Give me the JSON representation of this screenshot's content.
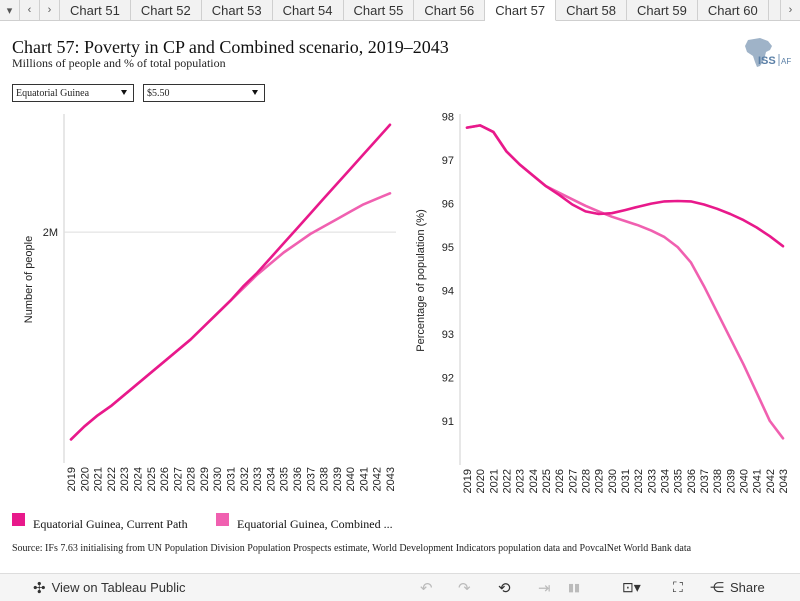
{
  "tabbar": {
    "tabs": [
      "Chart 51",
      "Chart 52",
      "Chart 53",
      "Chart 54",
      "Chart 55",
      "Chart 56",
      "Chart 57",
      "Chart 58",
      "Chart 59",
      "Chart 60"
    ],
    "active_index": 6
  },
  "header": {
    "title": "Chart 57: Poverty in CP and Combined scenario, 2019–2043",
    "subtitle": "Millions of people and % of total population",
    "logo_text": "ISS AFRICA"
  },
  "filters": {
    "country": "Equatorial Guinea",
    "poverty_line": "$5.50"
  },
  "colors": {
    "current_path": "#e8198b",
    "combined": "#f060b0"
  },
  "chart_data": [
    {
      "type": "line",
      "ylabel": "Number of people",
      "x": [
        2019,
        2020,
        2021,
        2022,
        2023,
        2024,
        2025,
        2026,
        2027,
        2028,
        2029,
        2030,
        2031,
        2032,
        2033,
        2034,
        2035,
        2036,
        2037,
        2038,
        2039,
        2040,
        2041,
        2042,
        2043
      ],
      "y_ticks": [
        {
          "value": 2.0,
          "label": "2M"
        }
      ],
      "ylim": [
        0.85,
        2.66
      ],
      "series": [
        {
          "name": "Equatorial Guinea, Current Path",
          "values": [
            0.88,
            0.95,
            1.01,
            1.06,
            1.12,
            1.18,
            1.24,
            1.3,
            1.36,
            1.42,
            1.49,
            1.56,
            1.63,
            1.71,
            1.78,
            1.86,
            1.94,
            2.02,
            2.1,
            2.18,
            2.26,
            2.34,
            2.42,
            2.5,
            2.58
          ]
        },
        {
          "name": "Equatorial Guinea, Combined ...",
          "values": [
            0.88,
            0.95,
            1.01,
            1.06,
            1.12,
            1.18,
            1.24,
            1.3,
            1.36,
            1.42,
            1.49,
            1.56,
            1.63,
            1.7,
            1.77,
            1.83,
            1.89,
            1.94,
            1.99,
            2.03,
            2.07,
            2.11,
            2.15,
            2.18,
            2.21
          ]
        }
      ]
    },
    {
      "type": "line",
      "ylabel": "Percentage of population (%)",
      "x": [
        2019,
        2020,
        2021,
        2022,
        2023,
        2024,
        2025,
        2026,
        2027,
        2028,
        2029,
        2030,
        2031,
        2032,
        2033,
        2034,
        2035,
        2036,
        2037,
        2038,
        2039,
        2040,
        2041,
        2042,
        2043
      ],
      "y_ticks": [
        {
          "value": 98,
          "label": "98"
        },
        {
          "value": 97,
          "label": "97"
        },
        {
          "value": 96,
          "label": "96"
        },
        {
          "value": 95,
          "label": "95"
        },
        {
          "value": 94,
          "label": "94"
        },
        {
          "value": 93,
          "label": "93"
        },
        {
          "value": 92,
          "label": "92"
        },
        {
          "value": 91,
          "label": "91"
        }
      ],
      "ylim": [
        90.4,
        98.2
      ],
      "series": [
        {
          "name": "Equatorial Guinea, Current Path",
          "values": [
            97.75,
            97.8,
            97.65,
            97.2,
            96.9,
            96.65,
            96.4,
            96.2,
            95.98,
            95.82,
            95.76,
            95.78,
            95.85,
            95.93,
            96.0,
            96.05,
            96.06,
            96.05,
            95.98,
            95.88,
            95.76,
            95.62,
            95.45,
            95.25,
            95.02
          ]
        },
        {
          "name": "Equatorial Guinea, Combined ...",
          "values": [
            97.75,
            97.8,
            97.65,
            97.2,
            96.9,
            96.65,
            96.4,
            96.25,
            96.1,
            95.95,
            95.82,
            95.7,
            95.6,
            95.5,
            95.38,
            95.23,
            95.0,
            94.65,
            94.1,
            93.5,
            92.9,
            92.3,
            91.65,
            91.0,
            90.6
          ]
        }
      ]
    }
  ],
  "legend": {
    "items": [
      "Equatorial Guinea, Current Path",
      "Equatorial Guinea, Combined ..."
    ]
  },
  "source": "Source: IFs 7.63 initialising from UN Population Division Population Prospects estimate, World Development Indicators population data and PovcalNet World Bank data",
  "toolbar": {
    "view_label": "View on Tableau Public",
    "share_label": "Share"
  }
}
